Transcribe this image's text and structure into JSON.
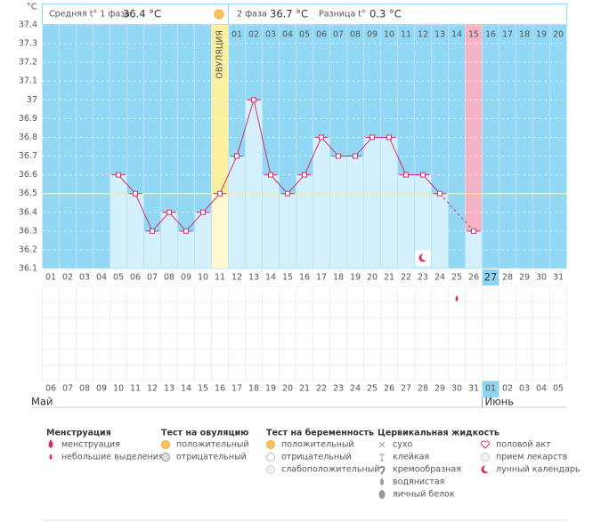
{
  "chart_data": {
    "type": "line",
    "y_unit": "°C",
    "header": {
      "phase1_label": "Средняя t° 1 фаза",
      "phase1_value": "36.4 °C",
      "phase2_label": "2 фаза",
      "phase2_value": "36.7 °C",
      "diff_label": "Разница t°",
      "diff_value": "0.3 °C"
    },
    "categories": [
      "01",
      "02",
      "03",
      "04",
      "05",
      "06",
      "07",
      "08",
      "09",
      "10",
      "11",
      "12",
      "13",
      "14",
      "15",
      "16",
      "17",
      "18",
      "19",
      "20",
      "21",
      "22",
      "23",
      "24",
      "25",
      "26",
      "27",
      "28",
      "29",
      "30",
      "31"
    ],
    "phase2_days": [
      null,
      null,
      null,
      null,
      null,
      null,
      null,
      null,
      null,
      null,
      null,
      "01",
      "02",
      "03",
      "04",
      "05",
      "06",
      "07",
      "08",
      "09",
      "10",
      "11",
      "12",
      "13",
      "14",
      "15",
      "16",
      "17",
      "18",
      "19",
      "20"
    ],
    "dates": [
      "06",
      "07",
      "08",
      "09",
      "10",
      "11",
      "12",
      "13",
      "14",
      "15",
      "16",
      "17",
      "18",
      "19",
      "20",
      "21",
      "22",
      "23",
      "24",
      "25",
      "26",
      "27",
      "28",
      "29",
      "30",
      "31",
      "01",
      "02",
      "03",
      "04",
      "05"
    ],
    "dates_red": [
      false,
      false,
      false,
      false,
      false,
      true,
      true,
      false,
      false,
      false,
      false,
      false,
      true,
      true,
      false,
      false,
      false,
      false,
      false,
      true,
      true,
      false,
      false,
      false,
      false,
      false,
      false,
      true,
      false,
      false,
      false
    ],
    "months": [
      {
        "label": "Май",
        "day": 1
      },
      {
        "label": "Июнь",
        "day": 27
      }
    ],
    "values": [
      null,
      null,
      null,
      null,
      36.6,
      36.5,
      36.3,
      36.4,
      36.3,
      36.4,
      36.5,
      36.7,
      37.0,
      36.6,
      36.5,
      36.6,
      36.8,
      36.7,
      36.7,
      36.8,
      36.8,
      36.6,
      36.6,
      36.5,
      null,
      36.3,
      null,
      null,
      null,
      null,
      null
    ],
    "line_color": "#d0306a",
    "bar_color": "#d4f0fc",
    "plot_color": "#92d7f3",
    "ylim": [
      36.1,
      37.4
    ],
    "yticks": [
      36.1,
      36.2,
      36.3,
      36.4,
      36.5,
      36.6,
      36.7,
      36.8,
      36.9,
      37,
      37.1,
      37.2,
      37.3,
      37.4
    ],
    "grid": true,
    "cover_line": 36.5,
    "cover_line_color": "#f3ee8a",
    "ovulation_day": 11,
    "ovulation_label": "ОВУЛЯЦИЯ",
    "ovulation_color": "#fcf0a0",
    "period_day": 26,
    "period_color": "#f7b3c6",
    "today": 27,
    "today_color": "#8fd3f0",
    "markers": [
      {
        "day": 23,
        "kind": "moon"
      },
      {
        "day": 25,
        "kind": "drop"
      }
    ],
    "legend": [
      {
        "title": "Менструация",
        "items": [
          "менструация",
          "небольшие выделения"
        ]
      },
      {
        "title": "Тест на овуляцию",
        "items": [
          "положительный",
          "отрицательный"
        ]
      },
      {
        "title": "Тест на беременность",
        "items": [
          "положительный",
          "отрицательный",
          "слабоположительный"
        ]
      },
      {
        "title": "Цервикальная жидкость",
        "items": [
          "сухо",
          "клейкая",
          "кремообразная",
          "водянистая",
          "яичный белок"
        ]
      },
      {
        "items": [
          "половой акт",
          "прием лекарств",
          "лунный календарь"
        ]
      }
    ]
  }
}
